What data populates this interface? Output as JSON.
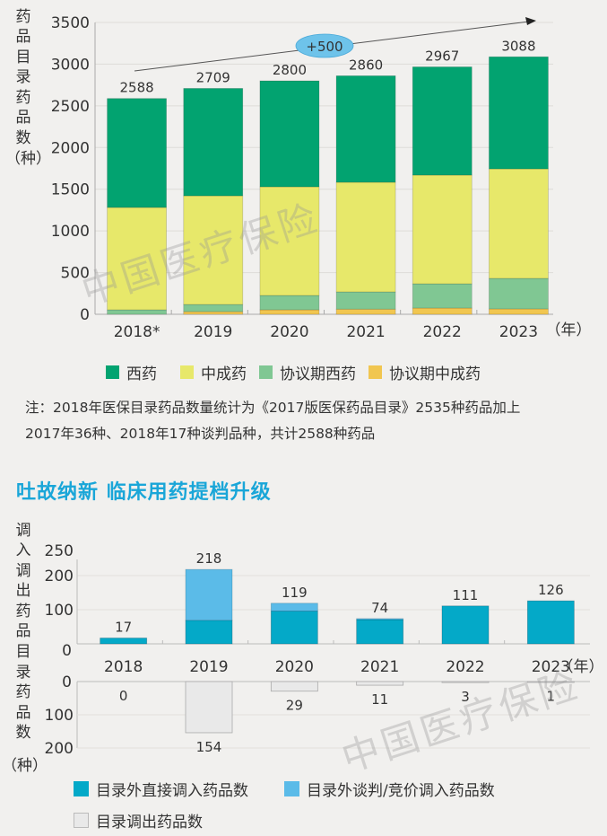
{
  "chart_data": [
    {
      "type": "bar",
      "stacked": true,
      "categories": [
        "2018*",
        "2019",
        "2020",
        "2021",
        "2022",
        "2023"
      ],
      "x_unit": "（年）",
      "ylabel": "药品目录药品数（种）",
      "ylim": [
        0,
        3500
      ],
      "yticks": [
        0,
        500,
        1000,
        1500,
        2000,
        2500,
        3000,
        3500
      ],
      "grid": true,
      "totals": [
        2588,
        2709,
        2800,
        2860,
        2967,
        3088
      ],
      "series": [
        {
          "name": "协议期中成药",
          "color": "#f1c650",
          "values": [
            0,
            32,
            54,
            62,
            75,
            65
          ]
        },
        {
          "name": "协议期西药",
          "color": "#80c793",
          "values": [
            54,
            86,
            172,
            207,
            291,
            366
          ]
        },
        {
          "name": "中成药",
          "color": "#e7e86a",
          "values": [
            1227,
            1303,
            1303,
            1314,
            1303,
            1313
          ]
        },
        {
          "name": "西药",
          "color": "#02a370",
          "values": [
            1307,
            1288,
            1271,
            1277,
            1298,
            1344
          ]
        }
      ],
      "legend": [
        "西药",
        "中成药",
        "协议期西药",
        "协议期中成药"
      ],
      "annotation": "+500",
      "legend_position": "bottom"
    },
    {
      "type": "bar",
      "stacked": true,
      "categories": [
        "2018",
        "2019",
        "2020",
        "2021",
        "2022",
        "2023"
      ],
      "x_unit": "（年）",
      "ylabel": "调入调出药品目录药品数（种）",
      "ylim_in": [
        0,
        250
      ],
      "yticks_in": [
        0,
        100,
        200,
        250
      ],
      "ylim_out": [
        0,
        200
      ],
      "yticks_out": [
        0,
        100,
        200
      ],
      "totals_in": [
        17,
        218,
        119,
        74,
        111,
        126
      ],
      "series": [
        {
          "name": "目录外直接调入药品数",
          "color": "#04a9c8",
          "values": [
            17,
            69,
            96,
            71,
            111,
            126
          ]
        },
        {
          "name": "目录外谈判/竞价调入药品数",
          "color": "#5bbbe8",
          "values": [
            0,
            149,
            23,
            3,
            0,
            0
          ]
        },
        {
          "name": "目录调出药品数",
          "color": "#e9e9e9",
          "values": [
            0,
            154,
            29,
            11,
            3,
            1
          ]
        }
      ],
      "legend_position": "bottom"
    }
  ],
  "chart1": {
    "ylabel_chars": [
      "药",
      "品",
      "目",
      "录",
      "药",
      "品",
      "数",
      "（种）"
    ],
    "yticks": [
      "3500",
      "3000",
      "2500",
      "2000",
      "1500",
      "1000",
      "500",
      "0"
    ],
    "xticks": [
      "2018*",
      "2019",
      "2020",
      "2021",
      "2022",
      "2023"
    ],
    "totals": [
      "2588",
      "2709",
      "2800",
      "2860",
      "2967",
      "3088"
    ],
    "x_unit": "（年）",
    "annotation": "+500",
    "legend": [
      "西药",
      "中成药",
      "协议期西药",
      "协议期中成药"
    ],
    "legend_colors": [
      "#02a370",
      "#e7e86a",
      "#80c793",
      "#f1c650"
    ]
  },
  "note": {
    "line1": "注：2018年医保目录药品数量统计为《2017版医保药品目录》2535种药品加上",
    "line2": "2017年36种、2018年17种谈判品种，共计2588种药品"
  },
  "section_title": "吐故纳新  临床用药提档升级",
  "chart2": {
    "ylabel_chars": [
      "调",
      "入",
      "调",
      "出",
      "药",
      "品",
      "目",
      "录",
      "药",
      "品",
      "数",
      "（种）"
    ],
    "yticks_in": [
      "250",
      "200",
      "100",
      "0"
    ],
    "yticks_out": [
      "0",
      "100",
      "200"
    ],
    "xticks": [
      "2018",
      "2019",
      "2020",
      "2021",
      "2022",
      "2023"
    ],
    "x_unit": "（年）",
    "totals_in": [
      "17",
      "218",
      "119",
      "74",
      "111",
      "126"
    ],
    "totals_out": [
      "0",
      "154",
      "29",
      "11",
      "3",
      "1"
    ],
    "legend": [
      "目录外直接调入药品数",
      "目录外谈判/竞价调入药品数",
      "目录调出药品数"
    ],
    "legend_colors": [
      "#04a9c8",
      "#5bbbe8",
      "#e9e9e9"
    ]
  },
  "watermark": "中国医疗保险"
}
